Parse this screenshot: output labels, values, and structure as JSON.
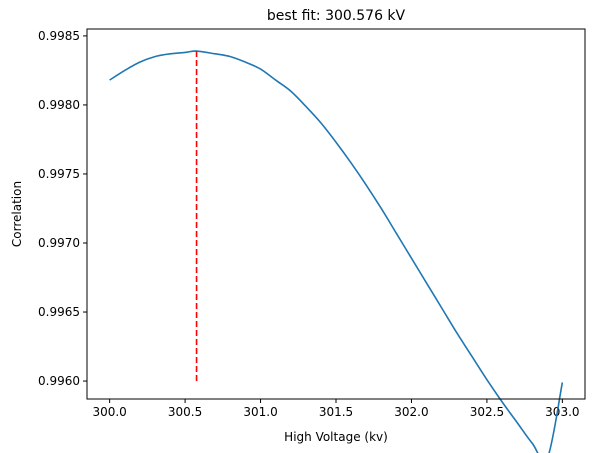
{
  "chart_data": {
    "type": "line",
    "title": "best fit: 300.576 kV",
    "xlabel": "High Voltage (kv)",
    "ylabel": "Correlation",
    "xlim": [
      299.85,
      303.15
    ],
    "ylim": [
      0.99587,
      0.99855
    ],
    "xticks": [
      300.0,
      300.5,
      301.0,
      301.5,
      302.0,
      302.5,
      303.0
    ],
    "xtick_labels": [
      "300.0",
      "300.5",
      "301.0",
      "301.5",
      "302.0",
      "302.5",
      "303.0"
    ],
    "yticks": [
      0.996,
      0.9965,
      0.997,
      0.9975,
      0.998,
      0.9985
    ],
    "ytick_labels": [
      "0.9960",
      "0.9965",
      "0.9970",
      "0.9975",
      "0.9980",
      "0.9985"
    ],
    "grid": false,
    "series": [
      {
        "color": "#1f77b4",
        "x": [
          300.0,
          300.1,
          300.2,
          300.3,
          300.4,
          300.5,
          300.576,
          300.7,
          300.8,
          300.9,
          301.0,
          301.1,
          301.2,
          301.3,
          301.4,
          301.5,
          301.6,
          301.7,
          301.8,
          301.9,
          302.0,
          302.1,
          302.2,
          302.3,
          302.4,
          302.5,
          302.6,
          302.7,
          302.8,
          302.9,
          303.0
        ],
        "y": [
          0.99818,
          0.99825,
          0.99831,
          0.99835,
          0.99837,
          0.99838,
          0.99839,
          0.99837,
          0.99835,
          0.99831,
          0.99826,
          0.99818,
          0.9981,
          0.99799,
          0.99787,
          0.99773,
          0.99758,
          0.99742,
          0.99725,
          0.99707,
          0.99689,
          0.99671,
          0.99653,
          0.99635,
          0.99618,
          0.99601,
          0.99585,
          0.9957,
          0.99555,
          0.99544,
          0.99599
        ]
      }
    ],
    "vline": {
      "x": 300.576,
      "y_from": 0.996,
      "y_to": 0.99839,
      "color": "#ff0000",
      "style": "dashed"
    }
  }
}
